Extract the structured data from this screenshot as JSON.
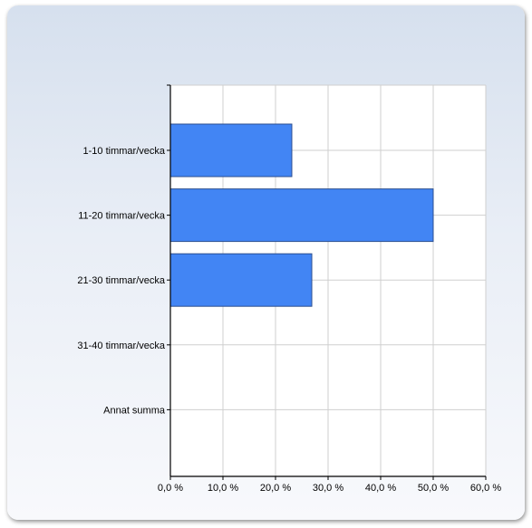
{
  "chart_data": {
    "type": "bar",
    "orientation": "horizontal",
    "categories": [
      "1-10 timmar/vecka",
      "11-20 timmar/vecka",
      "21-30 timmar/vecka",
      "31-40 timmar/vecka",
      "Annat summa"
    ],
    "values": [
      23.1,
      50.0,
      26.9,
      0.0,
      0.0
    ],
    "x_ticks": [
      "0,0 %",
      "10,0 %",
      "20,0 %",
      "30,0 %",
      "40,0 %",
      "50,0 %",
      "60,0 %"
    ],
    "xlim": [
      0,
      60
    ],
    "grid": true,
    "title": "",
    "xlabel": "",
    "ylabel": "",
    "bar_color": "#4285f4",
    "bar_stroke": "#2c4f8f"
  }
}
